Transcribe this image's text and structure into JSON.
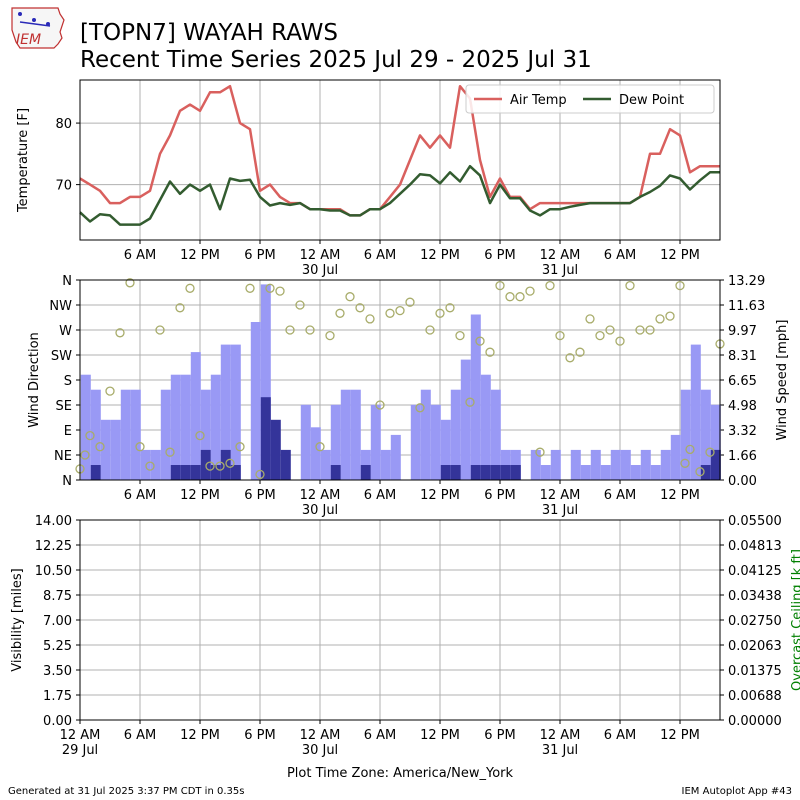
{
  "header": {
    "logo_text": "IEM",
    "title_line1": "[TOPN7] WAYAH RAWS",
    "title_line2": "Recent Time Series 2025 Jul 29 - 2025 Jul 31"
  },
  "footer": {
    "generated": "Generated at 31 Jul 2025 3:37 PM CDT in 0.35s",
    "app": "IEM Autoplot App #43",
    "timezone_label": "Plot Time Zone: America/New_York"
  },
  "colors": {
    "air_temp": "#d9605e",
    "dew_point": "#335c30",
    "wind_speed": "#9999f5",
    "wind_gust": "#34349a",
    "wind_dir": "#a8ac6a",
    "ceiling_label": "#008000",
    "grid": "#b0b0b0"
  },
  "chart_data": [
    {
      "type": "line",
      "ylabel": "Temperature [F]",
      "xlim_hours": [
        0,
        64
      ],
      "ylim": [
        61,
        87
      ],
      "yticks": [
        70,
        80
      ],
      "grid": true,
      "legend_placement": "top-right",
      "x_ticks": [
        {
          "hour": 6,
          "label": "6 AM"
        },
        {
          "hour": 12,
          "label": "12 PM"
        },
        {
          "hour": 18,
          "label": "6 PM"
        },
        {
          "hour": 24,
          "label": "12 AM",
          "date": "30 Jul"
        },
        {
          "hour": 30,
          "label": "6 AM"
        },
        {
          "hour": 36,
          "label": "12 PM"
        },
        {
          "hour": 42,
          "label": "6 PM"
        },
        {
          "hour": 48,
          "label": "12 AM",
          "date": "31 Jul"
        },
        {
          "hour": 54,
          "label": "6 AM"
        },
        {
          "hour": 60,
          "label": "12 PM"
        }
      ],
      "series": [
        {
          "name": "Air Temp",
          "x": [
            0,
            1,
            2,
            3,
            4,
            5,
            6,
            7,
            8,
            9,
            10,
            11,
            12,
            13,
            14,
            15,
            16,
            17,
            18,
            19,
            20,
            21,
            22,
            23,
            24,
            25,
            26,
            27,
            28,
            29,
            30,
            31,
            32,
            33,
            34,
            35,
            36,
            37,
            38,
            39,
            40,
            41,
            42,
            43,
            44,
            45,
            46,
            47,
            48,
            49,
            50,
            51,
            52,
            53,
            54,
            55,
            56,
            57,
            58,
            59,
            60,
            61,
            62,
            63,
            64
          ],
          "values": [
            71,
            70,
            69,
            67,
            67,
            68,
            68,
            69,
            75,
            78,
            82,
            83,
            82,
            85,
            85,
            86,
            80,
            79,
            69,
            70,
            68,
            67,
            67,
            66,
            66,
            66,
            66,
            65,
            65,
            66,
            66,
            68,
            70,
            74,
            78,
            76,
            78,
            76,
            86,
            84,
            74,
            68,
            71,
            68,
            68,
            66,
            67,
            67,
            67,
            67,
            67,
            67,
            67,
            67,
            67,
            67,
            68,
            75,
            75,
            79,
            78,
            72,
            73,
            73,
            73
          ]
        },
        {
          "name": "Dew Point",
          "x": [
            0,
            1,
            2,
            3,
            4,
            5,
            6,
            7,
            8,
            9,
            10,
            11,
            12,
            13,
            14,
            15,
            16,
            17,
            18,
            19,
            20,
            21,
            22,
            23,
            24,
            25,
            26,
            27,
            28,
            29,
            30,
            31,
            32,
            33,
            34,
            35,
            36,
            37,
            38,
            39,
            40,
            41,
            42,
            43,
            44,
            45,
            46,
            47,
            48,
            49,
            50,
            51,
            52,
            53,
            54,
            55,
            56,
            57,
            58,
            59,
            60,
            61,
            62,
            63,
            64
          ],
          "values": [
            65.5,
            64,
            65.2,
            65,
            63.5,
            63.5,
            63.5,
            64.5,
            67.5,
            70.5,
            68.5,
            70,
            69,
            70,
            66,
            71,
            70.6,
            70.8,
            68,
            66.6,
            67,
            66.7,
            67,
            66,
            66,
            65.8,
            65.8,
            65,
            65,
            66,
            66,
            67,
            68.5,
            70,
            71.7,
            71.5,
            70.2,
            72,
            70.5,
            73,
            71.5,
            67,
            70,
            67.8,
            67.8,
            65.8,
            65,
            66,
            66,
            66.4,
            66.7,
            67,
            67,
            67,
            67,
            67,
            68,
            68.8,
            69.8,
            71.5,
            71,
            69.2,
            70.7,
            72,
            72
          ]
        }
      ]
    },
    {
      "type": "bar",
      "ylabel": "Wind Direction",
      "y2label": "Wind Speed [mph]",
      "xlim_hours": [
        0,
        64
      ],
      "dir_ticks": [
        "N",
        "NE",
        "E",
        "SE",
        "S",
        "SW",
        "W",
        "NW",
        "N"
      ],
      "speed_ticks": [
        "0.00",
        "1.66",
        "3.32",
        "4.98",
        "6.65",
        "8.31",
        "9.97",
        "11.63",
        "13.29"
      ],
      "speed_ylim": [
        0,
        13.29
      ],
      "grid": true,
      "x_ticks": [
        {
          "hour": 6,
          "label": "6 AM"
        },
        {
          "hour": 12,
          "label": "12 PM"
        },
        {
          "hour": 18,
          "label": "6 PM"
        },
        {
          "hour": 24,
          "label": "12 AM",
          "date": "30 Jul"
        },
        {
          "hour": 30,
          "label": "6 AM"
        },
        {
          "hour": 36,
          "label": "12 PM"
        },
        {
          "hour": 42,
          "label": "6 PM"
        },
        {
          "hour": 48,
          "label": "12 AM",
          "date": "31 Jul"
        },
        {
          "hour": 54,
          "label": "6 AM"
        },
        {
          "hour": 60,
          "label": "12 PM"
        }
      ],
      "speed_bars": {
        "start_hour": 0,
        "values": [
          7,
          6,
          4,
          4,
          6,
          6,
          2,
          2,
          6,
          7,
          7,
          8.5,
          6,
          7,
          9,
          9,
          0,
          10.5,
          13,
          0,
          0,
          0,
          5,
          3.5,
          2,
          5,
          6,
          6,
          2,
          5,
          2,
          3,
          0,
          5,
          6,
          5,
          4,
          6,
          8,
          11,
          7,
          6,
          2,
          2,
          0,
          2,
          1,
          2,
          0,
          2,
          1,
          2,
          1,
          2,
          2,
          1,
          2,
          1,
          2,
          3,
          6,
          9,
          6,
          5
        ],
        "gusts": [
          0,
          1,
          0,
          0,
          0,
          0,
          0,
          0,
          0,
          1,
          1,
          1,
          2,
          1,
          2,
          1,
          0,
          0,
          5.5,
          4,
          2,
          0,
          0,
          0,
          0,
          1,
          0,
          0,
          1,
          0,
          0,
          0,
          0,
          0,
          0,
          0,
          1,
          1,
          0,
          1,
          1,
          1,
          1,
          1,
          0,
          0,
          0,
          0,
          0,
          0,
          0,
          0,
          0,
          0,
          0,
          0,
          0,
          0,
          0,
          0,
          0,
          0,
          1,
          2
        ]
      },
      "directions": {
        "x": [
          0,
          0.5,
          1,
          2,
          3,
          4,
          5,
          6,
          7,
          8,
          9,
          10,
          11,
          12,
          13,
          14,
          15,
          16,
          17,
          18,
          19,
          20,
          21,
          22,
          23,
          24,
          25,
          26,
          27,
          28,
          29,
          30,
          31,
          32,
          33,
          34,
          35,
          36,
          37,
          38,
          39,
          40,
          41,
          42,
          43,
          44,
          45,
          46,
          47,
          48,
          49,
          50,
          51,
          52,
          53,
          54,
          55,
          56,
          57,
          58,
          59,
          60,
          60.5,
          61,
          62,
          63,
          64
        ],
        "values": [
          20,
          45,
          80,
          60,
          160,
          265,
          355,
          60,
          25,
          270,
          50,
          310,
          345,
          80,
          25,
          25,
          30,
          60,
          345,
          10,
          345,
          340,
          270,
          315,
          270,
          60,
          260,
          300,
          330,
          310,
          290,
          135,
          300,
          305,
          320,
          130,
          270,
          300,
          310,
          260,
          140,
          250,
          230,
          350,
          330,
          330,
          340,
          50,
          350,
          260,
          220,
          230,
          290,
          260,
          270,
          250,
          350,
          270,
          270,
          290,
          295,
          350,
          30,
          55,
          15,
          50,
          245
        ]
      }
    },
    {
      "type": "line",
      "ylabel": "Visibility [miles]",
      "y2label": "Overcast Ceiling [k ft]",
      "xlim_hours": [
        0,
        64
      ],
      "ylim": [
        0,
        14
      ],
      "y2lim": [
        0,
        0.055
      ],
      "yticks": [
        "0.00",
        "1.75",
        "3.50",
        "5.25",
        "7.00",
        "8.75",
        "10.50",
        "12.25",
        "14.00"
      ],
      "y2ticks": [
        "0.00000",
        "0.00688",
        "0.01375",
        "0.02063",
        "0.02750",
        "0.03438",
        "0.04125",
        "0.04813",
        "0.05500"
      ],
      "grid": true,
      "series": [],
      "x_ticks": [
        {
          "hour": -24,
          "label": "12 AM",
          "date": "29 Jul"
        },
        {
          "hour": -18,
          "label": "6 AM"
        },
        {
          "hour": -12,
          "label": "12 PM"
        },
        {
          "hour": -6,
          "label": "6 PM"
        },
        {
          "hour": 0,
          "label": "12 AM",
          "date": "30 Jul"
        },
        {
          "hour": 6,
          "label": "6 AM"
        },
        {
          "hour": 12,
          "label": "12 PM"
        },
        {
          "hour": 18,
          "label": "6 PM"
        },
        {
          "hour": 24,
          "label": "12 AM",
          "date": "31 Jul"
        },
        {
          "hour": 30,
          "label": "6 AM"
        },
        {
          "hour": 36,
          "label": "12 PM"
        }
      ],
      "xlim_hours_offset": [
        -24,
        40
      ]
    }
  ]
}
